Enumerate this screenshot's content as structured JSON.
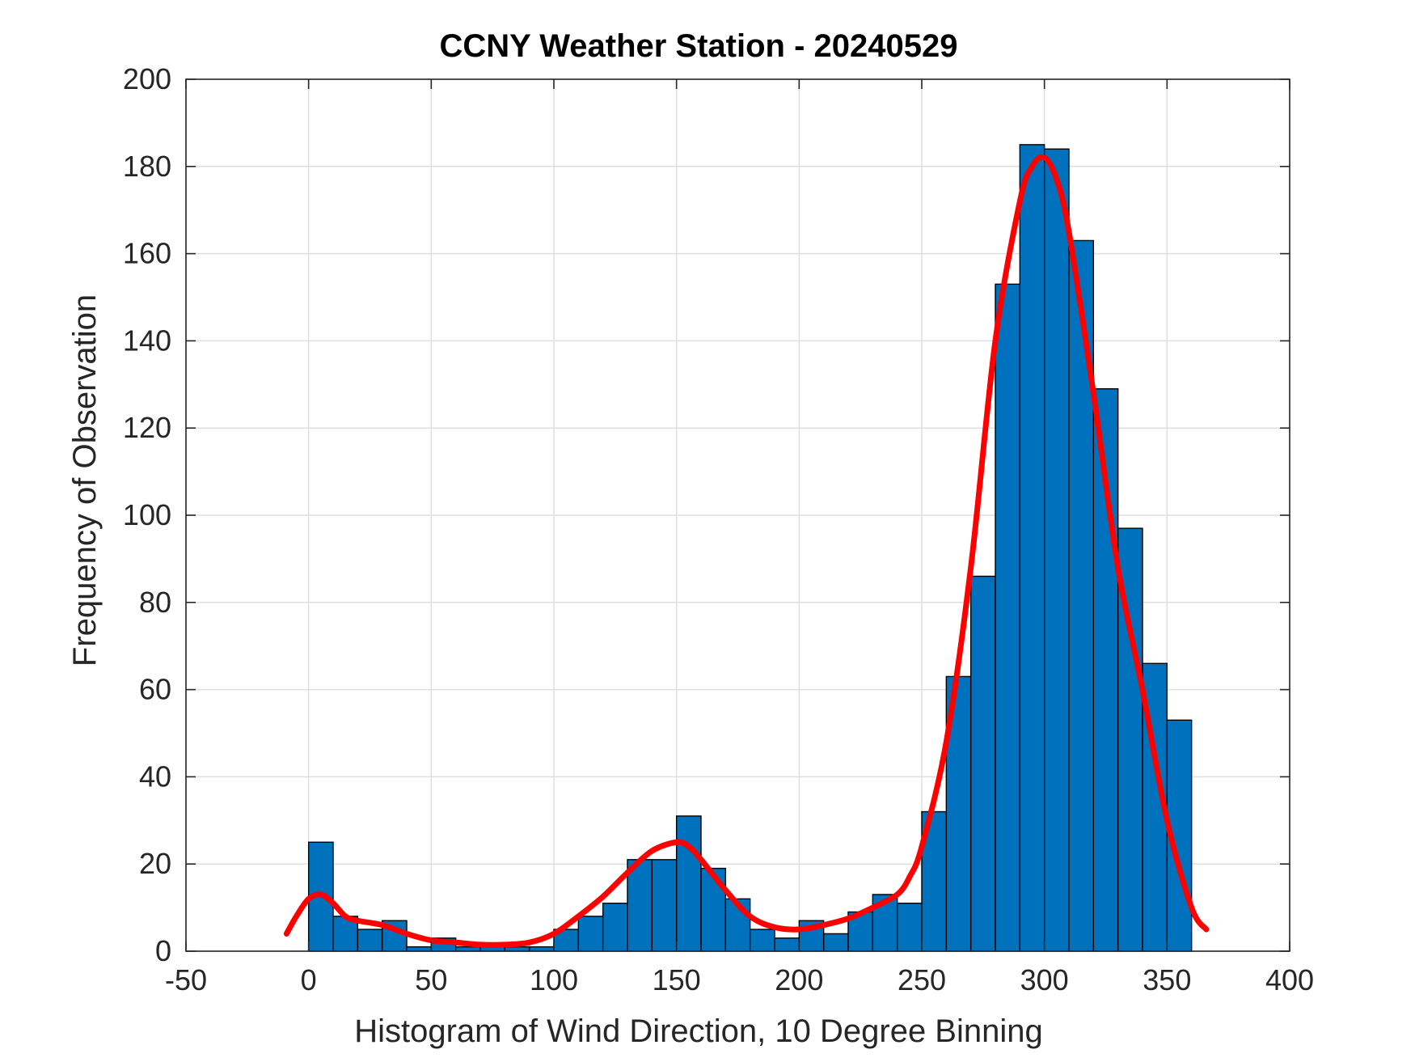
{
  "chart_data": {
    "type": "bar",
    "title": "CCNY Weather Station - 20240529",
    "xlabel": "Histogram of Wind Direction, 10 Degree Binning",
    "ylabel": "Frequency of Observation",
    "xlim": [
      -50,
      400
    ],
    "ylim": [
      0,
      200
    ],
    "xticks": [
      "-50",
      "0",
      "50",
      "100",
      "150",
      "200",
      "250",
      "300",
      "350",
      "400"
    ],
    "yticks": [
      "0",
      "20",
      "40",
      "60",
      "80",
      "100",
      "120",
      "140",
      "160",
      "180",
      "200"
    ],
    "grid": true,
    "bin_width": 10,
    "bin_edges_start": [
      0,
      10,
      20,
      30,
      40,
      50,
      60,
      70,
      80,
      90,
      100,
      110,
      120,
      130,
      140,
      150,
      160,
      170,
      180,
      190,
      200,
      210,
      220,
      230,
      240,
      250,
      260,
      270,
      280,
      290,
      300,
      310,
      320,
      330,
      340,
      350
    ],
    "values": [
      25,
      8,
      5,
      7,
      1,
      3,
      1,
      1,
      1,
      1,
      5,
      8,
      11,
      21,
      21,
      31,
      19,
      12,
      5,
      3,
      7,
      4,
      9,
      13,
      11,
      32,
      63,
      86,
      153,
      185,
      184,
      163,
      129,
      97,
      66,
      53
    ],
    "series": [
      {
        "type": "line",
        "color": "#ff0000",
        "x": [
          -9,
          -5,
          0,
          5,
          10,
          15,
          20,
          30,
          40,
          50,
          60,
          70,
          80,
          90,
          100,
          110,
          120,
          130,
          140,
          150,
          155,
          160,
          170,
          180,
          190,
          200,
          210,
          220,
          230,
          240,
          245,
          250,
          260,
          270,
          280,
          290,
          295,
          300,
          305,
          310,
          320,
          330,
          340,
          350,
          360,
          366
        ],
        "y": [
          4,
          8,
          12,
          13,
          11,
          8,
          7,
          6,
          4,
          2.5,
          2,
          1.5,
          1.5,
          2,
          4,
          8,
          12.5,
          18,
          23,
          25,
          24,
          21,
          14,
          8,
          5.5,
          5,
          6,
          7.5,
          10,
          13,
          17,
          24,
          48,
          88,
          140,
          172,
          180,
          182,
          177,
          165,
          128,
          88,
          60,
          30,
          10,
          5
        ]
      }
    ],
    "bar_color": "#0072bd"
  }
}
